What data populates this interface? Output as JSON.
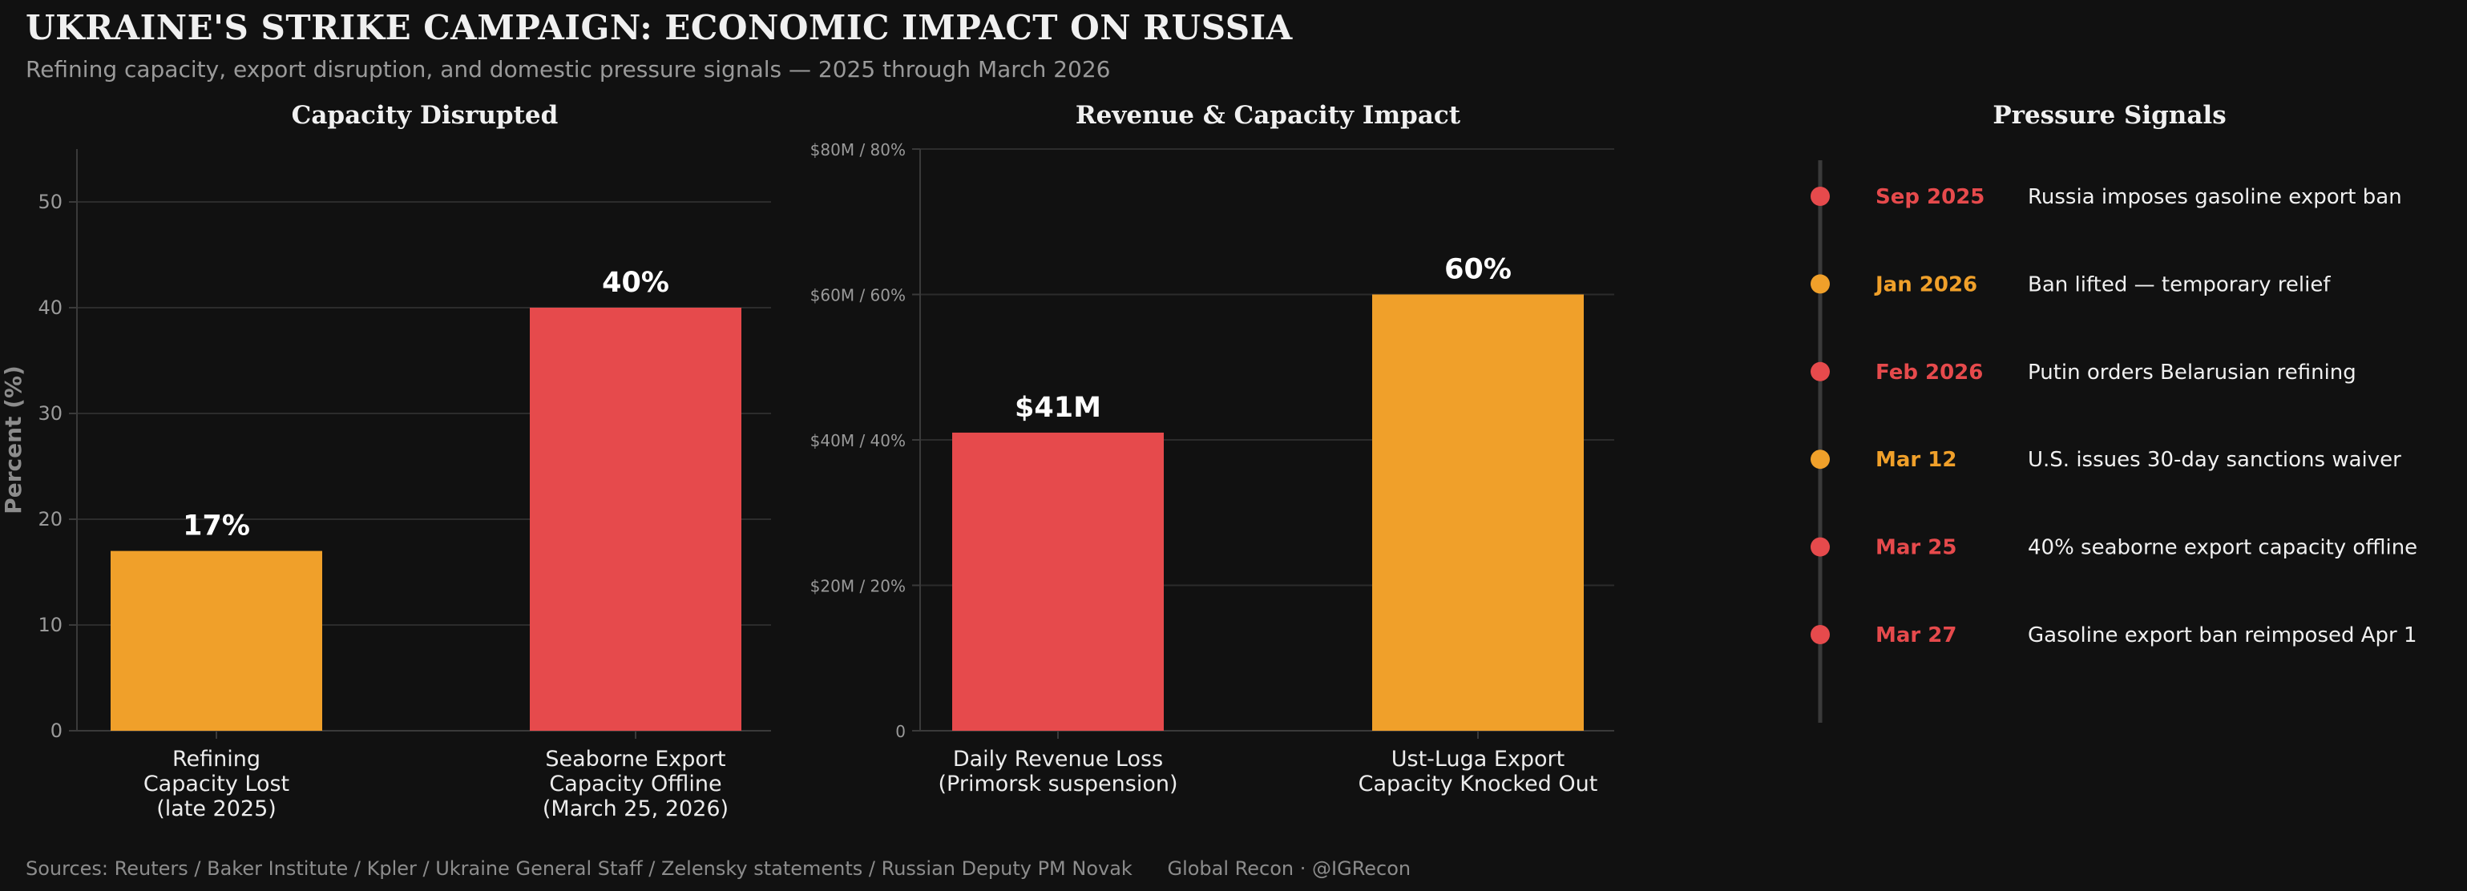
{
  "header": {
    "title": "UKRAINE'S STRIKE CAMPAIGN: ECONOMIC IMPACT ON RUSSIA",
    "subtitle": "Refining capacity, export disruption, and domestic pressure signals — 2025 through March 2026"
  },
  "colors": {
    "orange": "#F0A02A",
    "red": "#E64A4C",
    "background": "#111111"
  },
  "chart_data": [
    {
      "type": "bar",
      "title": "Capacity Disrupted",
      "ylabel": "Percent (%)",
      "ylim": [
        0,
        55
      ],
      "yticks": [
        0,
        10,
        20,
        30,
        40,
        50
      ],
      "grid": true,
      "categories": [
        [
          "Refining",
          "Capacity Lost",
          "(late 2025)"
        ],
        [
          "Seaborne Export",
          "Capacity Offline",
          "(March 25, 2026)"
        ]
      ],
      "values": [
        17,
        40
      ],
      "data_labels": [
        "17%",
        "40%"
      ],
      "bar_colors": [
        "#F0A02A",
        "#E64A4C"
      ]
    },
    {
      "type": "bar",
      "title": "Revenue & Capacity Impact",
      "ylabel": "",
      "ylim": [
        0,
        80
      ],
      "yticks": [
        0,
        20,
        40,
        60,
        80
      ],
      "ytick_labels": [
        "0",
        "$20M / 20%",
        "$40M / 40%",
        "$60M / 60%",
        "$80M / 80%"
      ],
      "grid": true,
      "categories": [
        [
          "Daily Revenue Loss",
          "(Primorsk suspension)"
        ],
        [
          "Ust-Luga Export",
          "Capacity Knocked Out"
        ]
      ],
      "values": [
        41,
        60
      ],
      "data_labels": [
        "$41M",
        "60%"
      ],
      "bar_colors": [
        "#E64A4C",
        "#F0A02A"
      ]
    }
  ],
  "timeline": {
    "title": "Pressure Signals",
    "events": [
      {
        "date": "Sep 2025",
        "text": "Russia imposes gasoline export ban",
        "color": "#E64A4C"
      },
      {
        "date": "Jan 2026",
        "text": "Ban lifted — temporary relief",
        "color": "#F0A02A"
      },
      {
        "date": "Feb 2026",
        "text": "Putin orders Belarusian refining",
        "color": "#E64A4C"
      },
      {
        "date": "Mar 12",
        "text": "U.S. issues 30-day sanctions waiver",
        "color": "#F0A02A"
      },
      {
        "date": "Mar 25",
        "text": "40% seaborne export capacity offline",
        "color": "#E64A4C"
      },
      {
        "date": "Mar 27",
        "text": "Gasoline export ban reimposed Apr 1",
        "color": "#E64A4C"
      }
    ]
  },
  "footer": {
    "sources": "Sources: Reuters / Baker Institute / Kpler / Ukraine General Staff / Zelensky statements / Russian Deputy PM Novak",
    "credit": "Global Recon · @IGRecon"
  }
}
